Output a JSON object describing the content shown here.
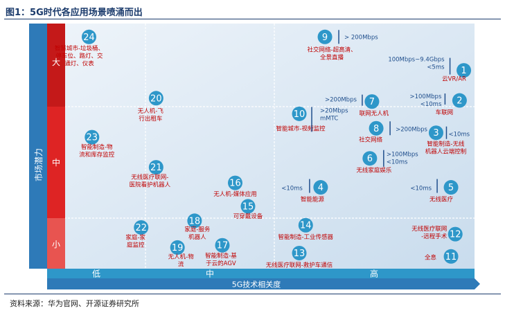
{
  "figure": {
    "title": "图1：5G时代各应用场景喷涌而出",
    "source": "资料来源：华为官网、开源证券研究所"
  },
  "chart_data": {
    "type": "scatter",
    "xlabel": "5G技术相关度",
    "ylabel": "市场潜力",
    "x_levels": [
      "低",
      "中",
      "高"
    ],
    "y_levels": [
      "大",
      "中",
      "小"
    ],
    "colors": {
      "bubble": "#2e97c9",
      "label": "#c00000",
      "spec": "#1f4e8c",
      "bar_x": "#2e97c9",
      "bar_y_big": "#c41919",
      "bar_y_mid": "#de2424",
      "bar_y_small": "#e85450"
    },
    "points": [
      {
        "n": "1",
        "x": 9.75,
        "y": 8.9,
        "label": "云VR/AR",
        "spec": "100Mbps~9.4Gbps\n<5ms"
      },
      {
        "n": "2",
        "x": 9.65,
        "y": 7.55,
        "label": "车联网",
        "spec": ">100Mbps\n<10ms"
      },
      {
        "n": "3",
        "x": 9.1,
        "y": 6.1,
        "label": "智能制造-无线\n机器人云端控制",
        "spec": "<10ms"
      },
      {
        "n": "4",
        "x": 6.4,
        "y": 3.65,
        "label": "智能能源",
        "spec": "<10ms"
      },
      {
        "n": "5",
        "x": 9.45,
        "y": 3.65,
        "label": "无线医疗",
        "spec": "<10ms"
      },
      {
        "n": "6",
        "x": 7.55,
        "y": 4.95,
        "label": "无线家庭娱乐",
        "spec": ">100Mbps\n<10ms"
      },
      {
        "n": "7",
        "x": 7.6,
        "y": 7.5,
        "label": "联网无人机",
        "spec": ">200Mbps"
      },
      {
        "n": "8",
        "x": 7.7,
        "y": 6.3,
        "label": "社交网络",
        "spec": ">200Mbps"
      },
      {
        "n": "9",
        "x": 6.5,
        "y": 10.4,
        "label": "社交网络-超高清、\n全景直播",
        "spec": "> 200Mbps"
      },
      {
        "n": "10",
        "x": 5.9,
        "y": 6.95,
        "label": "智能城市-视频监控",
        "spec": ">20Mbps\nmMTC"
      },
      {
        "n": "11",
        "x": 9.45,
        "y": 0.55,
        "label": "全息",
        "spec": ""
      },
      {
        "n": "12",
        "x": 9.55,
        "y": 1.55,
        "label": "无线医疗联网\n-远程手术",
        "spec": ""
      },
      {
        "n": "13",
        "x": 5.9,
        "y": 0.7,
        "label": "无线医疗联网-救护车通信",
        "spec": ""
      },
      {
        "n": "14",
        "x": 6.05,
        "y": 1.95,
        "label": "智能制造-工业传感器",
        "spec": ""
      },
      {
        "n": "15",
        "x": 4.7,
        "y": 2.8,
        "label": "可穿戴设备",
        "spec": ""
      },
      {
        "n": "16",
        "x": 4.4,
        "y": 3.85,
        "label": "无人机-媒体应用",
        "spec": ""
      },
      {
        "n": "17",
        "x": 4.1,
        "y": 1.05,
        "label": "智能制造-基\n于云的AGV",
        "spec": ""
      },
      {
        "n": "18",
        "x": 3.45,
        "y": 2.15,
        "label": "家庭-服务\n机器人",
        "spec": ""
      },
      {
        "n": "19",
        "x": 3.05,
        "y": 0.95,
        "label": "无人机-物\n流",
        "spec": ""
      },
      {
        "n": "20",
        "x": 2.55,
        "y": 7.65,
        "label": "无人机-飞\n行出租车",
        "spec": ""
      },
      {
        "n": "21",
        "x": 2.55,
        "y": 4.55,
        "label": "无线医疗联网-\n医院看护机器人",
        "spec": ""
      },
      {
        "n": "22",
        "x": 2.2,
        "y": 1.85,
        "label": "家庭-家\n庭监控",
        "spec": ""
      },
      {
        "n": "23",
        "x": 1.05,
        "y": 5.9,
        "label": "智能制造-物\n流和库存监控",
        "spec": ""
      },
      {
        "n": "24",
        "x": 0.98,
        "y": 10.4,
        "label": "智慧城市-垃圾桶、\n停车位、路灯、交\n通灯、仪表",
        "spec": ""
      }
    ]
  }
}
